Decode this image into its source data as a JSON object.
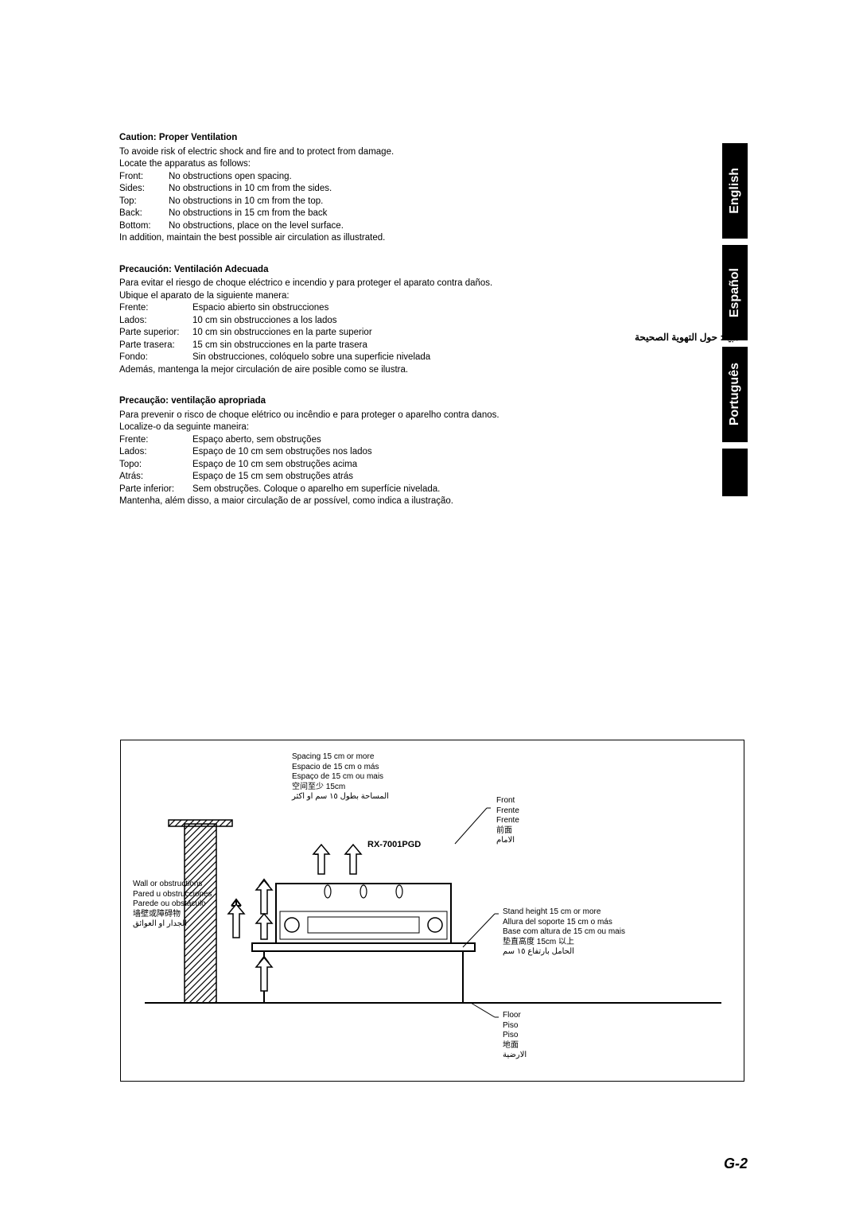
{
  "colors": {
    "bg": "#ffffff",
    "fg": "#000000"
  },
  "english": {
    "title": "Caution: Proper Ventilation",
    "intro1": "To avoide risk of electric shock and fire and to protect from damage.",
    "intro2": "Locate the apparatus as follows:",
    "rows": [
      {
        "label": "Front:",
        "value": "No obstructions open spacing."
      },
      {
        "label": "Sides:",
        "value": "No obstructions in 10 cm from the sides."
      },
      {
        "label": "Top:",
        "value": "No obstructions in 10 cm from the top."
      },
      {
        "label": "Back:",
        "value": "No obstructions in 15 cm from the back"
      },
      {
        "label": "Bottom:",
        "value": "No obstructions, place on the level surface."
      }
    ],
    "outro": "In addition, maintain the best possible air circulation as illustrated."
  },
  "spanish": {
    "title": "Precaución: Ventilación Adecuada",
    "intro1": "Para evitar el riesgo de choque eléctrico e incendio y para proteger el aparato contra daños.",
    "intro2": "Ubique el aparato de la siguiente manera:",
    "rows": [
      {
        "label": "Frente:",
        "value": "Espacio abierto sin obstrucciones"
      },
      {
        "label": "Lados:",
        "value": "10 cm sin obstrucciones a los lados"
      },
      {
        "label": "Parte superior:",
        "value": "10 cm sin obstrucciones en la parte superior"
      },
      {
        "label": "Parte trasera:",
        "value": "15 cm sin obstrucciones en la parte trasera"
      },
      {
        "label": "Fondo:",
        "value": "Sin obstrucciones, colóquelo sobre una superficie nivelada"
      }
    ],
    "outro": "Además, mantenga la mejor circulación de aire posible como se ilustra."
  },
  "portuguese": {
    "title": "Precaução: ventilação apropriada",
    "intro1": "Para prevenir o risco de choque elétrico ou incêndio e para proteger o aparelho contra danos.",
    "intro2": "Localize-o da seguinte maneira:",
    "rows": [
      {
        "label": "Frente:",
        "value": "Espaço aberto, sem obstruções"
      },
      {
        "label": "Lados:",
        "value": "Espaço de 10 cm sem obstruções nos lados"
      },
      {
        "label": "Topo:",
        "value": "Espaço de 10 cm sem obstruções acima"
      },
      {
        "label": "Atrás:",
        "value": "Espaço de 15 cm sem obstruções atrás"
      },
      {
        "label": "Parte inferior:",
        "value": "Sem obstruções. Coloque o aparelho em superfície nivelada."
      }
    ],
    "outro": "Mantenha, além disso, a maior circulação de ar possível, como indica a ilustração."
  },
  "arabic_caution": "تنبيه: حول التهوية الصحيحة",
  "tabs": {
    "en": "English",
    "es": "Español",
    "pt": "Português"
  },
  "diagram": {
    "model": "RX-7001PGD",
    "spacing": {
      "l1": "Spacing 15 cm or more",
      "l2": "Espacio de 15 cm o más",
      "l3": "Espaço de 15 cm ou mais",
      "l4": "空间至少 15cm",
      "l5": "المساحة بطول ١٥ سم او اكثر"
    },
    "front": {
      "l1": "Front",
      "l2": "Frente",
      "l3": "Frente",
      "l4": "前面",
      "l5": "الامام"
    },
    "wall": {
      "l1": "Wall or obstructions",
      "l2": "Pared u obstrucciones",
      "l3": "Parede ou obstáculo",
      "l4": "墙壁或障碍物",
      "l5": "الجدار او العوائق"
    },
    "stand": {
      "l1": "Stand height 15 cm or more",
      "l2": "Allura del soporte 15 cm o más",
      "l3": "Base com altura de 15 cm ou mais",
      "l4": "垫直高度 15cm 以上",
      "l5": "الحامل بارتفاع ١٥ سم"
    },
    "floor": {
      "l1": "Floor",
      "l2": "Piso",
      "l3": "Piso",
      "l4": "地面",
      "l5": "الارضية"
    }
  },
  "page_number": "G-2"
}
